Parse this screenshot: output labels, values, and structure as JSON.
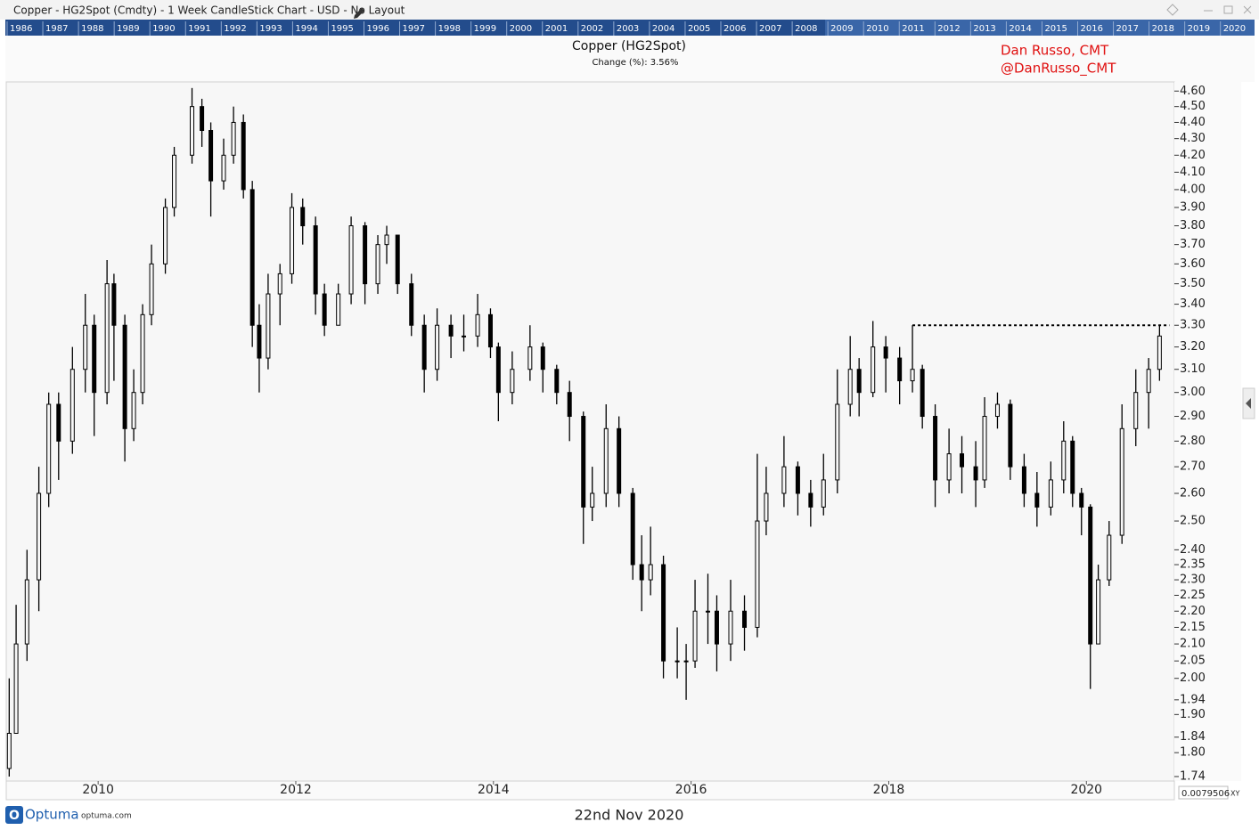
{
  "window_title": "Copper - HG2Spot (Cmdty) - 1 Week CandleStick Chart - USD - No Layout",
  "navigator": {
    "years": [
      "1986",
      "1987",
      "1988",
      "1989",
      "1990",
      "1991",
      "1992",
      "1993",
      "1994",
      "1995",
      "1996",
      "1997",
      "1998",
      "1999",
      "2000",
      "2001",
      "2002",
      "2003",
      "2004",
      "2005",
      "2006",
      "2007",
      "2008",
      "2009",
      "2010",
      "2011",
      "2012",
      "2013",
      "2014",
      "2015",
      "2016",
      "2017",
      "2018",
      "2019",
      "2020"
    ]
  },
  "chart_data": {
    "type": "candlestick",
    "title": "Copper (HG2Spot)",
    "subtitle": "Change (%): 3.56%",
    "annotations": [
      "Dan Russo, CMT",
      "@DanRusso_CMT"
    ],
    "x": [
      2009.1,
      2009.17,
      2009.28,
      2009.4,
      2009.5,
      2009.6,
      2009.74,
      2009.87,
      2009.96,
      2010.09,
      2010.16,
      2010.27,
      2010.36,
      2010.45,
      2010.54,
      2010.68,
      2010.77,
      2010.95,
      2011.05,
      2011.14,
      2011.27,
      2011.37,
      2011.47,
      2011.56,
      2011.63,
      2011.72,
      2011.84,
      2011.96,
      2012.07,
      2012.2,
      2012.29,
      2012.43,
      2012.56,
      2012.7,
      2012.83,
      2012.92,
      2013.03,
      2013.17,
      2013.3,
      2013.43,
      2013.57,
      2013.7,
      2013.84,
      2013.97,
      2014.05,
      2014.19,
      2014.37,
      2014.5,
      2014.64,
      2014.77,
      2014.91,
      2015.0,
      2015.14,
      2015.27,
      2015.41,
      2015.5,
      2015.59,
      2015.72,
      2015.86,
      2015.95,
      2016.04,
      2016.17,
      2016.26,
      2016.4,
      2016.54,
      2016.67,
      2016.76,
      2016.94,
      2017.08,
      2017.21,
      2017.34,
      2017.48,
      2017.61,
      2017.7,
      2017.84,
      2017.97,
      2018.11,
      2018.24,
      2018.34,
      2018.47,
      2018.61,
      2018.74,
      2018.88,
      2018.97,
      2019.1,
      2019.23,
      2019.37,
      2019.5,
      2019.64,
      2019.77,
      2019.86,
      2019.95,
      2020.04,
      2020.12,
      2020.23,
      2020.36,
      2020.5,
      2020.63,
      2020.74
    ],
    "open": [
      1.76,
      1.85,
      2.1,
      2.3,
      2.6,
      2.95,
      2.8,
      3.1,
      3.3,
      3.0,
      3.5,
      3.3,
      2.85,
      3.0,
      3.35,
      3.6,
      3.9,
      4.2,
      4.5,
      4.35,
      4.05,
      4.2,
      4.4,
      4.0,
      3.3,
      3.15,
      3.45,
      3.55,
      3.9,
      3.8,
      3.45,
      3.3,
      3.45,
      3.8,
      3.5,
      3.7,
      3.75,
      3.5,
      3.3,
      3.1,
      3.3,
      3.25,
      3.25,
      3.35,
      3.2,
      3.0,
      3.1,
      3.2,
      3.1,
      3.0,
      2.9,
      2.55,
      2.6,
      2.85,
      2.6,
      2.35,
      2.3,
      2.35,
      2.05,
      2.05,
      2.05,
      2.2,
      2.2,
      2.1,
      2.2,
      2.15,
      2.5,
      2.6,
      2.7,
      2.6,
      2.55,
      2.65,
      2.95,
      3.1,
      3.0,
      3.2,
      3.15,
      3.05,
      3.1,
      2.9,
      2.65,
      2.75,
      2.7,
      2.65,
      2.9,
      2.95,
      2.7,
      2.6,
      2.55,
      2.65,
      2.8,
      2.6,
      2.55,
      2.1,
      2.3,
      2.45,
      2.85,
      3.0,
      3.1
    ],
    "high": [
      2.0,
      2.22,
      2.4,
      2.7,
      3.0,
      3.0,
      3.2,
      3.45,
      3.35,
      3.62,
      3.55,
      3.35,
      3.1,
      3.4,
      3.7,
      3.95,
      4.25,
      4.62,
      4.55,
      4.4,
      4.3,
      4.5,
      4.45,
      4.05,
      3.4,
      3.55,
      3.6,
      3.98,
      3.95,
      3.85,
      3.5,
      3.5,
      3.85,
      3.82,
      3.75,
      3.8,
      3.75,
      3.55,
      3.35,
      3.38,
      3.35,
      3.35,
      3.45,
      3.38,
      3.22,
      3.18,
      3.3,
      3.22,
      3.12,
      3.05,
      2.92,
      2.7,
      2.95,
      2.9,
      2.62,
      2.45,
      2.48,
      2.38,
      2.15,
      2.1,
      2.3,
      2.32,
      2.25,
      2.3,
      2.25,
      2.75,
      2.7,
      2.82,
      2.72,
      2.65,
      2.75,
      3.1,
      3.25,
      3.15,
      3.32,
      3.25,
      3.2,
      3.3,
      3.12,
      2.95,
      2.85,
      2.82,
      2.8,
      2.98,
      3.0,
      2.97,
      2.75,
      2.68,
      2.72,
      2.88,
      2.82,
      2.62,
      2.56,
      2.35,
      2.5,
      2.95,
      3.1,
      3.15,
      3.3
    ],
    "low": [
      1.74,
      1.85,
      2.05,
      2.2,
      2.55,
      2.65,
      2.75,
      3.0,
      2.82,
      2.95,
      3.05,
      2.72,
      2.8,
      2.95,
      3.3,
      3.55,
      3.85,
      4.15,
      4.25,
      3.85,
      4.0,
      4.15,
      3.95,
      3.2,
      3.0,
      3.1,
      3.3,
      3.5,
      3.7,
      3.35,
      3.25,
      3.3,
      3.4,
      3.4,
      3.45,
      3.6,
      3.45,
      3.25,
      3.0,
      3.05,
      3.15,
      3.18,
      3.2,
      3.15,
      2.88,
      2.95,
      3.05,
      3.0,
      2.95,
      2.8,
      2.42,
      2.5,
      2.55,
      2.55,
      2.3,
      2.2,
      2.25,
      2.0,
      2.0,
      1.94,
      2.03,
      2.1,
      2.02,
      2.05,
      2.08,
      2.12,
      2.45,
      2.55,
      2.52,
      2.48,
      2.52,
      2.6,
      2.9,
      2.9,
      2.98,
      3.0,
      2.95,
      3.0,
      2.85,
      2.55,
      2.6,
      2.6,
      2.55,
      2.62,
      2.85,
      2.65,
      2.55,
      2.48,
      2.52,
      2.6,
      2.55,
      2.45,
      1.97,
      2.1,
      2.28,
      2.42,
      2.78,
      2.85,
      3.05
    ],
    "close": [
      1.85,
      2.1,
      2.3,
      2.6,
      2.95,
      2.8,
      3.1,
      3.3,
      3.0,
      3.5,
      3.3,
      2.85,
      3.0,
      3.35,
      3.6,
      3.9,
      4.2,
      4.5,
      4.35,
      4.05,
      4.2,
      4.4,
      4.0,
      3.3,
      3.15,
      3.45,
      3.55,
      3.9,
      3.8,
      3.45,
      3.3,
      3.45,
      3.8,
      3.5,
      3.7,
      3.75,
      3.5,
      3.3,
      3.1,
      3.3,
      3.25,
      3.25,
      3.35,
      3.2,
      3.0,
      3.1,
      3.2,
      3.1,
      3.0,
      2.9,
      2.55,
      2.6,
      2.85,
      2.6,
      2.35,
      2.3,
      2.35,
      2.05,
      2.05,
      2.05,
      2.2,
      2.2,
      2.1,
      2.2,
      2.15,
      2.5,
      2.6,
      2.7,
      2.6,
      2.55,
      2.65,
      2.95,
      3.1,
      3.0,
      3.2,
      3.15,
      3.05,
      3.1,
      2.9,
      2.65,
      2.75,
      2.7,
      2.65,
      2.9,
      2.95,
      2.7,
      2.6,
      2.55,
      2.65,
      2.8,
      2.6,
      2.55,
      2.1,
      2.3,
      2.45,
      2.85,
      3.0,
      3.1,
      3.25
    ],
    "color": "#000000",
    "xlim": [
      2009.07,
      2020.89
    ],
    "xticks": [
      2010,
      2012,
      2014,
      2016,
      2018,
      2020
    ],
    "ylim": [
      1.729,
      4.66
    ],
    "log_y": true,
    "yticks": [
      1.74,
      {
        "value": 1.8,
        "label": "1.80"
      },
      1.84,
      {
        "value": 1.9,
        "label": "1.90"
      },
      1.94,
      {
        "value": 2,
        "label": "2.00"
      },
      2.05,
      {
        "value": 2.1,
        "label": "2.10"
      },
      2.15,
      {
        "value": 2.2,
        "label": "2.20"
      },
      2.25,
      {
        "value": 2.3,
        "label": "2.30"
      },
      2.35,
      {
        "value": 2.4,
        "label": "2.40"
      },
      {
        "value": 2.5,
        "label": "2.50"
      },
      {
        "value": 2.6,
        "label": "2.60"
      },
      {
        "value": 2.7,
        "label": "2.70"
      },
      {
        "value": 2.8,
        "label": "2.80"
      },
      {
        "value": 2.9,
        "label": "2.90"
      },
      {
        "value": 3,
        "label": "3.00"
      },
      {
        "value": 3.1,
        "label": "3.10"
      },
      {
        "value": 3.2,
        "label": "3.20"
      },
      {
        "value": 3.3,
        "label": "3.30"
      },
      {
        "value": 3.4,
        "label": "3.40"
      },
      {
        "value": 3.5,
        "label": "3.50"
      },
      {
        "value": 3.6,
        "label": "3.60"
      },
      {
        "value": 3.7,
        "label": "3.70"
      },
      {
        "value": 3.8,
        "label": "3.80"
      },
      {
        "value": 3.9,
        "label": "3.90"
      },
      {
        "value": 4,
        "label": "4.00"
      },
      {
        "value": 4.1,
        "label": "4.10"
      },
      {
        "value": 4.2,
        "label": "4.20"
      },
      {
        "value": 4.3,
        "label": "4.30"
      },
      {
        "value": 4.4,
        "label": "4.40"
      },
      {
        "value": 4.5,
        "label": "4.50"
      },
      {
        "value": 4.6,
        "label": "4.60"
      }
    ],
    "resistance": {
      "value": 3.3,
      "x": [
        2018.24,
        2020.84
      ]
    }
  },
  "footer": {
    "brand": "Optuma",
    "site": "optuma.com",
    "date": "22nd Nov 2020",
    "cursor_value": "0.0079506",
    "cursor_mode": "XY"
  }
}
